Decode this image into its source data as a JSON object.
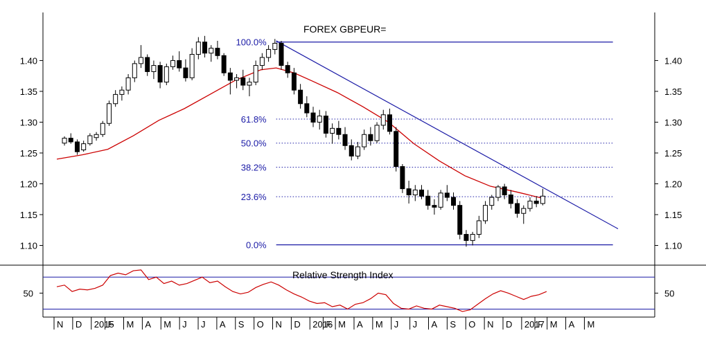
{
  "chart_data": {
    "type": "candlestick",
    "title": "FOREX GBPEUR=",
    "colors": {
      "background": "#ffffff",
      "axis": "#000000",
      "candle": "#000000",
      "moving_average": "#cc0000",
      "fib_and_trend": "#1a1aa6",
      "rsi_line": "#cc0000",
      "rsi_bands": "#1a1aa6"
    },
    "price_axis": {
      "range": [
        1.068,
        1.478
      ],
      "ticks": [
        "1.10",
        "1.15",
        "1.20",
        "1.25",
        "1.30",
        "1.35",
        "1.40"
      ],
      "tick_values": [
        1.1,
        1.15,
        1.2,
        1.25,
        1.3,
        1.35,
        1.4
      ]
    },
    "time_axis": {
      "range": [
        0,
        22
      ],
      "labels": [
        "N",
        "D",
        "2015",
        "F",
        "M",
        "A",
        "M",
        "J",
        "J",
        "A",
        "S",
        "O",
        "N",
        "D",
        "2016",
        "F",
        "M",
        "A",
        "M",
        "J",
        "J",
        "A",
        "S",
        "O",
        "N",
        "D",
        "2017",
        "F",
        "M",
        "A",
        "M"
      ],
      "positions": [
        0.0,
        0.73,
        1.46,
        2.0,
        2.73,
        3.46,
        4.19,
        4.92,
        5.65,
        6.38,
        7.11,
        7.84,
        8.57,
        9.3,
        10.03,
        10.55,
        11.03,
        11.76,
        12.49,
        13.22,
        13.95,
        14.68,
        15.41,
        16.14,
        16.87,
        17.6,
        18.33,
        18.85,
        19.33,
        20.06,
        20.79
      ]
    },
    "candles": [
      [
        0.3,
        1.266,
        1.277,
        1.262,
        1.274
      ],
      [
        0.55,
        1.274,
        1.282,
        1.265,
        1.268
      ],
      [
        0.8,
        1.268,
        1.272,
        1.247,
        1.252
      ],
      [
        1.05,
        1.255,
        1.27,
        1.252,
        1.265
      ],
      [
        1.3,
        1.265,
        1.282,
        1.262,
        1.278
      ],
      [
        1.55,
        1.275,
        1.284,
        1.27,
        1.28
      ],
      [
        1.8,
        1.28,
        1.302,
        1.276,
        1.298
      ],
      [
        2.05,
        1.298,
        1.335,
        1.294,
        1.33
      ],
      [
        2.3,
        1.33,
        1.352,
        1.325,
        1.345
      ],
      [
        2.55,
        1.345,
        1.358,
        1.335,
        1.352
      ],
      [
        2.8,
        1.352,
        1.378,
        1.345,
        1.372
      ],
      [
        3.05,
        1.372,
        1.4,
        1.365,
        1.395
      ],
      [
        3.3,
        1.395,
        1.425,
        1.388,
        1.405
      ],
      [
        3.55,
        1.405,
        1.41,
        1.375,
        1.382
      ],
      [
        3.8,
        1.382,
        1.4,
        1.37,
        1.392
      ],
      [
        4.05,
        1.392,
        1.398,
        1.355,
        1.365
      ],
      [
        4.3,
        1.365,
        1.395,
        1.36,
        1.39
      ],
      [
        4.55,
        1.39,
        1.408,
        1.385,
        1.4
      ],
      [
        4.8,
        1.4,
        1.415,
        1.382,
        1.388
      ],
      [
        5.05,
        1.388,
        1.402,
        1.366,
        1.372
      ],
      [
        5.3,
        1.372,
        1.42,
        1.368,
        1.41
      ],
      [
        5.55,
        1.41,
        1.438,
        1.402,
        1.43
      ],
      [
        5.8,
        1.43,
        1.44,
        1.405,
        1.412
      ],
      [
        6.05,
        1.412,
        1.425,
        1.398,
        1.42
      ],
      [
        6.3,
        1.42,
        1.432,
        1.402,
        1.408
      ],
      [
        6.55,
        1.408,
        1.412,
        1.375,
        1.38
      ],
      [
        6.8,
        1.38,
        1.388,
        1.345,
        1.368
      ],
      [
        7.05,
        1.368,
        1.378,
        1.355,
        1.372
      ],
      [
        7.3,
        1.372,
        1.385,
        1.352,
        1.36
      ],
      [
        7.55,
        1.36,
        1.372,
        1.342,
        1.365
      ],
      [
        7.8,
        1.365,
        1.4,
        1.36,
        1.392
      ],
      [
        8.05,
        1.392,
        1.412,
        1.385,
        1.405
      ],
      [
        8.3,
        1.405,
        1.425,
        1.398,
        1.418
      ],
      [
        8.55,
        1.418,
        1.435,
        1.41,
        1.428
      ],
      [
        8.8,
        1.428,
        1.432,
        1.385,
        1.392
      ],
      [
        9.05,
        1.392,
        1.398,
        1.372,
        1.38
      ],
      [
        9.3,
        1.38,
        1.388,
        1.345,
        1.352
      ],
      [
        9.55,
        1.352,
        1.362,
        1.322,
        1.33
      ],
      [
        9.8,
        1.33,
        1.342,
        1.308,
        1.315
      ],
      [
        10.05,
        1.315,
        1.325,
        1.292,
        1.3
      ],
      [
        10.3,
        1.3,
        1.32,
        1.288,
        1.31
      ],
      [
        10.55,
        1.31,
        1.318,
        1.275,
        1.282
      ],
      [
        10.8,
        1.282,
        1.298,
        1.265,
        1.29
      ],
      [
        11.05,
        1.29,
        1.302,
        1.272,
        1.28
      ],
      [
        11.3,
        1.28,
        1.292,
        1.255,
        1.262
      ],
      [
        11.55,
        1.262,
        1.272,
        1.238,
        1.245
      ],
      [
        11.8,
        1.245,
        1.268,
        1.24,
        1.26
      ],
      [
        12.05,
        1.26,
        1.288,
        1.255,
        1.28
      ],
      [
        12.3,
        1.28,
        1.292,
        1.262,
        1.27
      ],
      [
        12.55,
        1.27,
        1.3,
        1.266,
        1.295
      ],
      [
        12.8,
        1.295,
        1.32,
        1.288,
        1.312
      ],
      [
        13.05,
        1.312,
        1.322,
        1.28,
        1.285
      ],
      [
        13.3,
        1.285,
        1.292,
        1.22,
        1.228
      ],
      [
        13.55,
        1.228,
        1.232,
        1.185,
        1.192
      ],
      [
        13.8,
        1.192,
        1.205,
        1.168,
        1.182
      ],
      [
        14.05,
        1.182,
        1.198,
        1.172,
        1.19
      ],
      [
        14.3,
        1.19,
        1.198,
        1.175,
        1.18
      ],
      [
        14.55,
        1.18,
        1.19,
        1.158,
        1.165
      ],
      [
        14.8,
        1.165,
        1.175,
        1.15,
        1.162
      ],
      [
        15.05,
        1.162,
        1.19,
        1.158,
        1.185
      ],
      [
        15.3,
        1.185,
        1.198,
        1.172,
        1.178
      ],
      [
        15.55,
        1.178,
        1.186,
        1.158,
        1.165
      ],
      [
        15.8,
        1.165,
        1.172,
        1.11,
        1.118
      ],
      [
        16.05,
        1.118,
        1.125,
        1.098,
        1.108
      ],
      [
        16.3,
        1.108,
        1.122,
        1.1,
        1.118
      ],
      [
        16.55,
        1.118,
        1.148,
        1.112,
        1.14
      ],
      [
        16.8,
        1.14,
        1.172,
        1.135,
        1.165
      ],
      [
        17.05,
        1.165,
        1.182,
        1.158,
        1.178
      ],
      [
        17.3,
        1.178,
        1.198,
        1.172,
        1.195
      ],
      [
        17.55,
        1.195,
        1.2,
        1.175,
        1.182
      ],
      [
        17.8,
        1.182,
        1.19,
        1.16,
        1.168
      ],
      [
        18.05,
        1.168,
        1.175,
        1.145,
        1.152
      ],
      [
        18.3,
        1.152,
        1.165,
        1.135,
        1.16
      ],
      [
        18.55,
        1.16,
        1.178,
        1.155,
        1.172
      ],
      [
        18.8,
        1.172,
        1.18,
        1.162,
        1.168
      ],
      [
        19.05,
        1.168,
        1.192,
        1.165,
        1.18
      ]
    ],
    "moving_average": [
      [
        0.0,
        1.24
      ],
      [
        1.0,
        1.247
      ],
      [
        2.0,
        1.256
      ],
      [
        3.0,
        1.278
      ],
      [
        4.0,
        1.303
      ],
      [
        5.0,
        1.322
      ],
      [
        6.0,
        1.345
      ],
      [
        7.0,
        1.368
      ],
      [
        8.0,
        1.385
      ],
      [
        8.6,
        1.388
      ],
      [
        9.3,
        1.38
      ],
      [
        10.0,
        1.367
      ],
      [
        11.0,
        1.348
      ],
      [
        12.0,
        1.325
      ],
      [
        13.0,
        1.3
      ],
      [
        14.0,
        1.265
      ],
      [
        15.0,
        1.237
      ],
      [
        16.0,
        1.213
      ],
      [
        17.0,
        1.196
      ],
      [
        18.0,
        1.187
      ],
      [
        19.0,
        1.177
      ]
    ],
    "fibonacci": {
      "levels": [
        "100.0%",
        "61.8%",
        "50.0%",
        "38.2%",
        "23.6%",
        "0.0%"
      ],
      "prices": [
        1.43,
        1.305,
        1.266,
        1.227,
        1.179,
        1.101
      ],
      "line_styles": [
        "solid",
        "dotted",
        "dotted",
        "dotted",
        "dotted",
        "solid"
      ],
      "x_start": 8.6,
      "x_end": 21.8
    },
    "trendline": [
      [
        8.6,
        1.432
      ],
      [
        22.0,
        1.127
      ]
    ],
    "rsi": {
      "title": "Relative Strength Index",
      "range": [
        20,
        85
      ],
      "ticks": [
        "50"
      ],
      "tick_values": [
        50
      ],
      "bands": [
        70,
        30
      ],
      "values": [
        [
          0.0,
          58
        ],
        [
          0.3,
          60
        ],
        [
          0.6,
          52
        ],
        [
          0.9,
          55
        ],
        [
          1.2,
          54
        ],
        [
          1.5,
          56
        ],
        [
          1.8,
          60
        ],
        [
          2.1,
          72
        ],
        [
          2.4,
          75
        ],
        [
          2.7,
          73
        ],
        [
          3.0,
          78
        ],
        [
          3.3,
          79
        ],
        [
          3.6,
          67
        ],
        [
          3.9,
          70
        ],
        [
          4.2,
          62
        ],
        [
          4.5,
          65
        ],
        [
          4.8,
          60
        ],
        [
          5.1,
          62
        ],
        [
          5.4,
          66
        ],
        [
          5.7,
          70
        ],
        [
          6.0,
          63
        ],
        [
          6.3,
          65
        ],
        [
          6.6,
          58
        ],
        [
          6.9,
          52
        ],
        [
          7.2,
          49
        ],
        [
          7.5,
          51
        ],
        [
          7.8,
          57
        ],
        [
          8.1,
          61
        ],
        [
          8.4,
          64
        ],
        [
          8.7,
          60
        ],
        [
          9.0,
          54
        ],
        [
          9.3,
          49
        ],
        [
          9.6,
          45
        ],
        [
          9.9,
          40
        ],
        [
          10.2,
          37
        ],
        [
          10.5,
          38
        ],
        [
          10.8,
          33
        ],
        [
          11.1,
          35
        ],
        [
          11.4,
          30
        ],
        [
          11.7,
          36
        ],
        [
          12.0,
          38
        ],
        [
          12.3,
          43
        ],
        [
          12.6,
          50
        ],
        [
          12.9,
          48
        ],
        [
          13.2,
          37
        ],
        [
          13.5,
          31
        ],
        [
          13.8,
          30
        ],
        [
          14.1,
          34
        ],
        [
          14.4,
          31
        ],
        [
          14.7,
          30
        ],
        [
          15.0,
          35
        ],
        [
          15.3,
          33
        ],
        [
          15.6,
          31
        ],
        [
          15.9,
          27
        ],
        [
          16.2,
          29
        ],
        [
          16.5,
          36
        ],
        [
          16.8,
          43
        ],
        [
          17.1,
          49
        ],
        [
          17.4,
          53
        ],
        [
          17.7,
          50
        ],
        [
          18.0,
          46
        ],
        [
          18.3,
          42
        ],
        [
          18.6,
          46
        ],
        [
          18.9,
          48
        ],
        [
          19.2,
          52
        ]
      ]
    }
  }
}
